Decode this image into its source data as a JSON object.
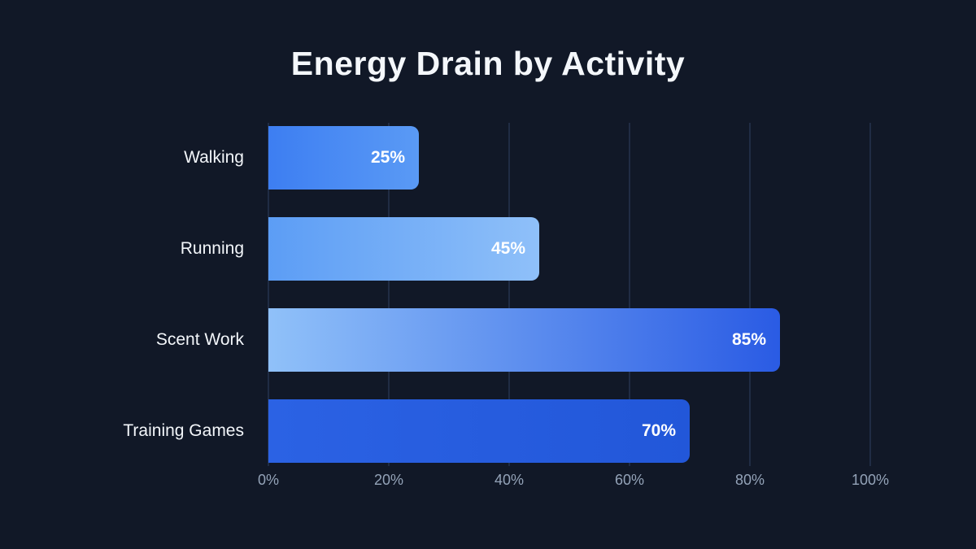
{
  "title": "Energy Drain by Activity",
  "colors": {
    "background": "#111827",
    "gridline": "#202c44",
    "title_text": "#f4f7fb",
    "category_text": "#f3f6fa",
    "value_text": "#ffffff",
    "tick_text": "#94a3b8"
  },
  "chart_data": {
    "type": "bar",
    "orientation": "horizontal",
    "title": "Energy Drain by Activity",
    "categories": [
      "Walking",
      "Running",
      "Scent Work",
      "Training Games"
    ],
    "values": [
      25,
      45,
      85,
      70
    ],
    "value_labels": [
      "25%",
      "45%",
      "85%",
      "70%"
    ],
    "bar_gradients": [
      {
        "from": "#3d7ef2",
        "to": "#5a9af5"
      },
      {
        "from": "#5c9df5",
        "to": "#8fc0f9"
      },
      {
        "from": "#90c1f9",
        "to": "#2a5be4"
      },
      {
        "from": "#2b62e4",
        "to": "#2257d9"
      }
    ],
    "xlabel": "",
    "ylabel": "",
    "xlim": [
      0,
      100
    ],
    "x_tick_values": [
      0,
      20,
      40,
      60,
      80,
      100
    ],
    "x_tick_labels": [
      "0%",
      "20%",
      "40%",
      "60%",
      "80%",
      "100%"
    ],
    "grid": "vertical",
    "legend": "none"
  }
}
